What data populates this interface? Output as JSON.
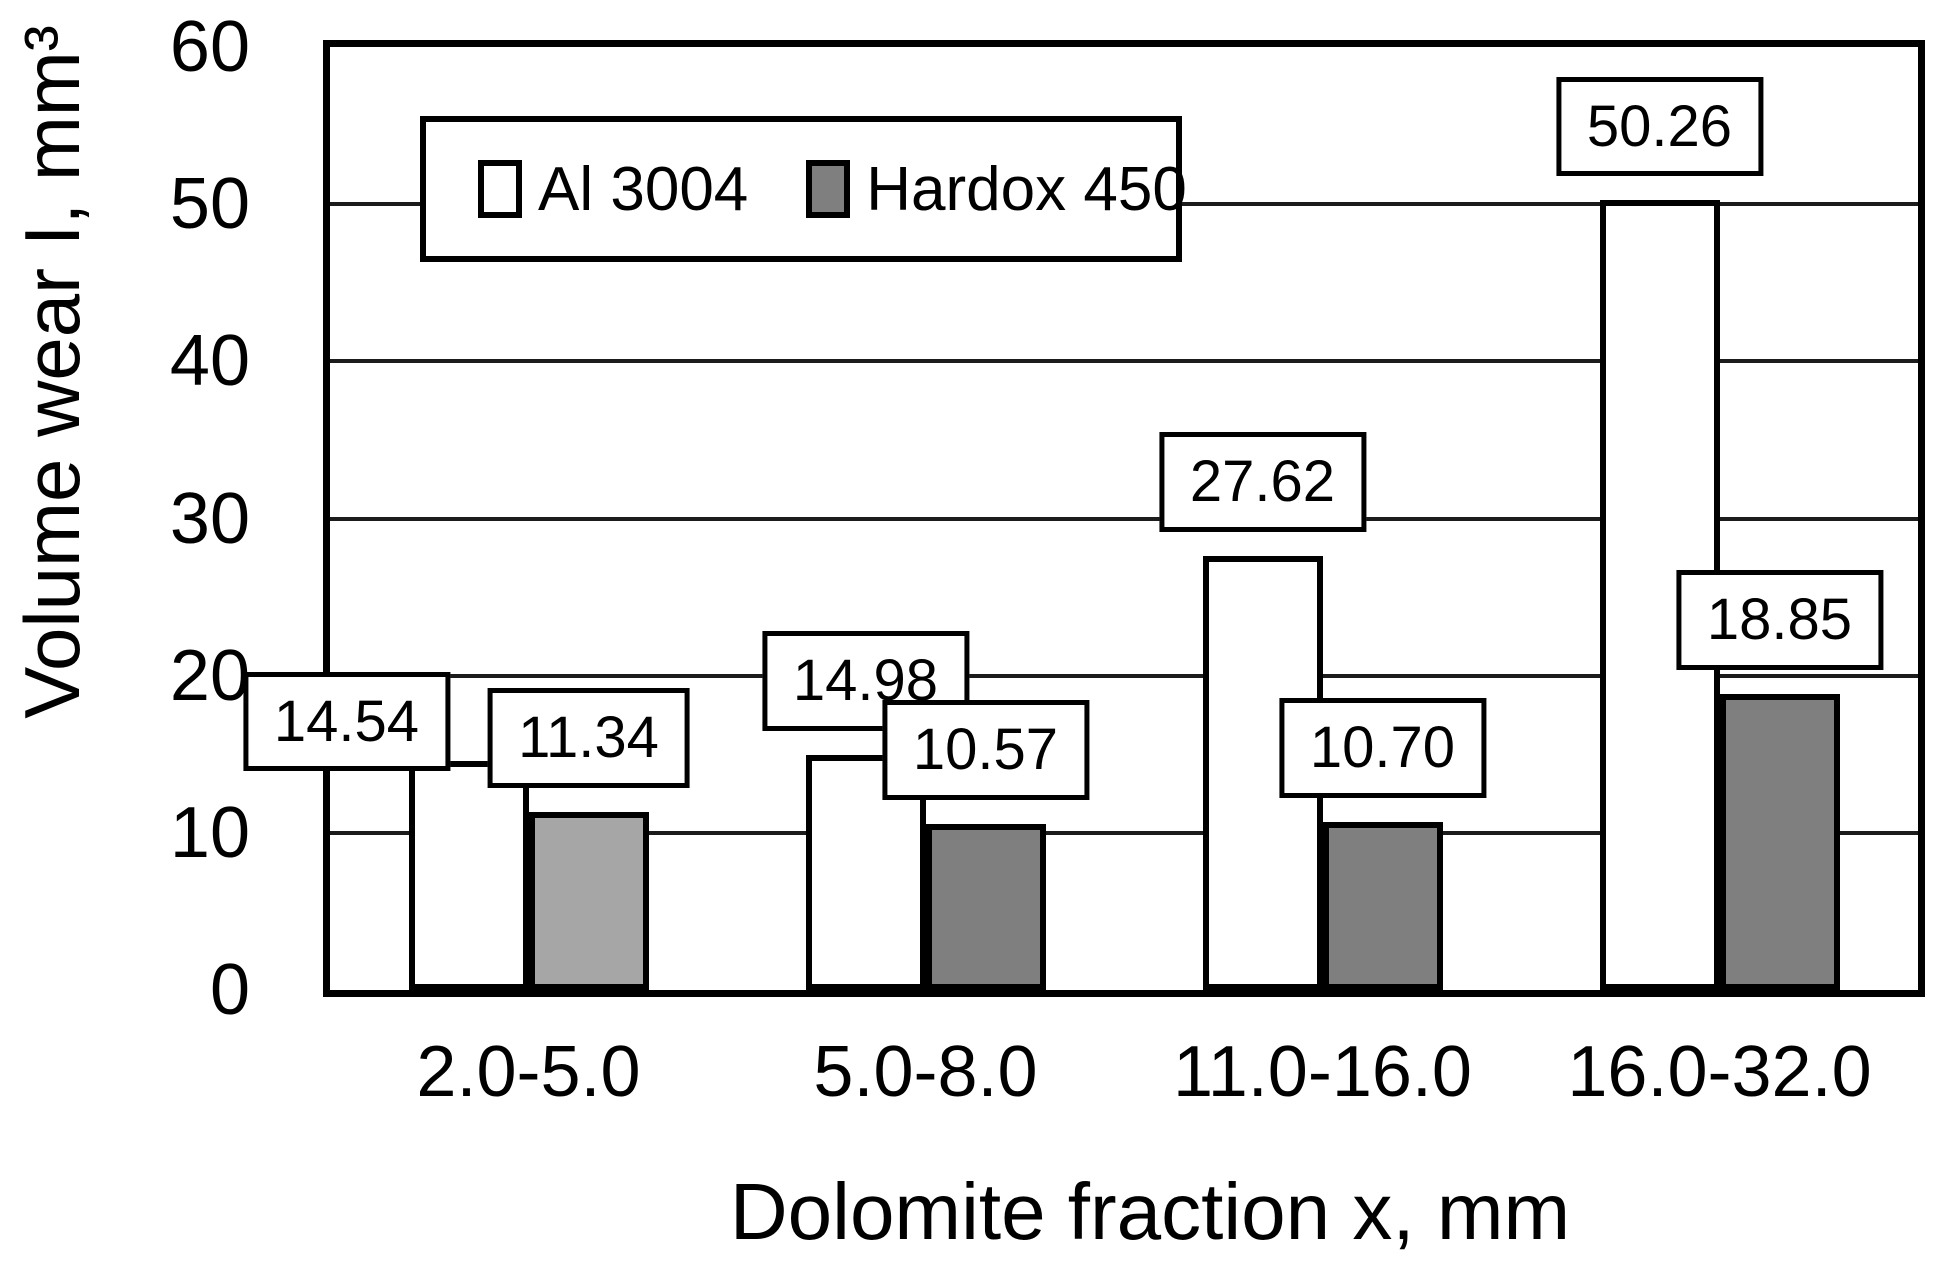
{
  "chart_data": {
    "type": "bar",
    "title": "",
    "xlabel": "Dolomite fraction x, mm",
    "ylabel": "Volume wear I, mm³",
    "categories": [
      "2.0-5.0",
      "5.0-8.0",
      "11.0-16.0",
      "16.0-32.0"
    ],
    "series": [
      {
        "name": "Al 3004",
        "values": [
          14.54,
          14.98,
          27.62,
          50.26
        ],
        "labels": [
          "14.54",
          "14.98",
          "27.62",
          "50.26"
        ],
        "fill": "#ffffff"
      },
      {
        "name": "Hardox 450",
        "values": [
          11.34,
          10.57,
          10.7,
          18.85
        ],
        "labels": [
          "11.34",
          "10.57",
          "10.70",
          "18.85"
        ],
        "fill": "#7f7f7f",
        "fill_overrides": {
          "0": "#a6a6a6"
        }
      }
    ],
    "ylim": [
      0,
      60
    ],
    "ytick_step": 10,
    "yticks": [
      "0",
      "10",
      "20",
      "30",
      "40",
      "50",
      "60"
    ],
    "grid": "horizontal",
    "legend_position": "top-inside-left",
    "axis_color": "#000000",
    "bar_border_color": "#000000",
    "label_box": {
      "bg": "#ffffff",
      "border": "#000000"
    },
    "label_layout": [
      [
        {
          "dx": -122,
          "dy": 34
        },
        null,
        null,
        null
      ],
      [
        null,
        null,
        null,
        null
      ]
    ]
  }
}
